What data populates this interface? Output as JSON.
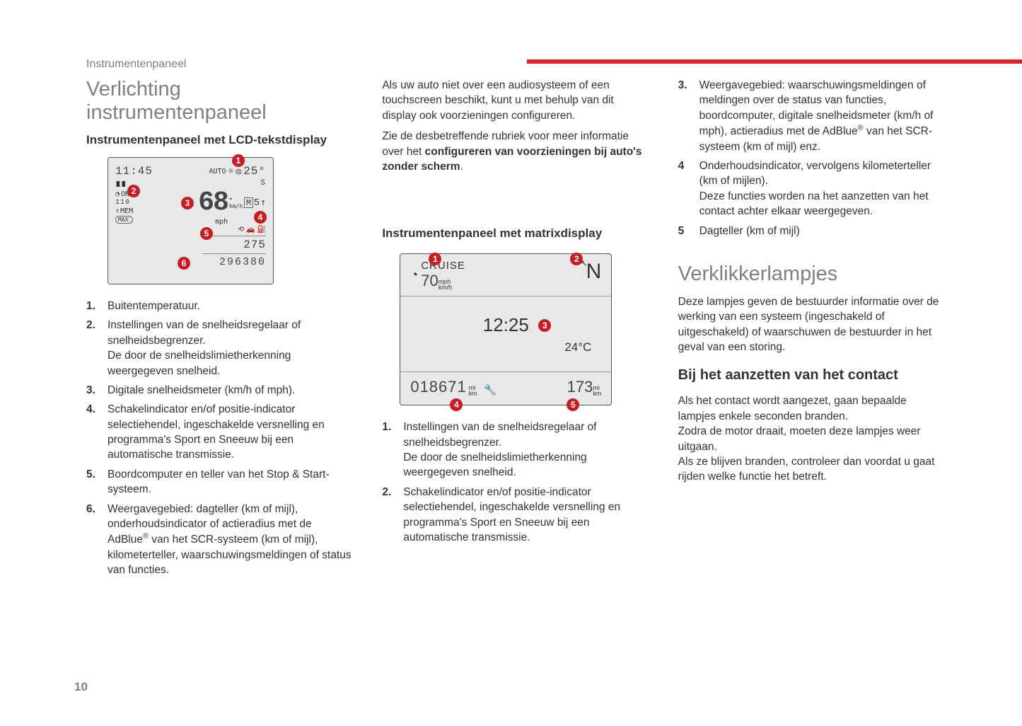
{
  "breadcrumb": "Instrumentenpaneel",
  "page_number": "10",
  "top_bar_color": "#d9262b",
  "col1": {
    "h1": "Verlichting instrumentenpaneel",
    "h2": "Instrumentenpaneel met LCD-tekstdisplay",
    "fig": {
      "time": "11:45",
      "temp": "25°",
      "speed_big": "68",
      "speed_unit1": "km/h",
      "speed_unit2": "mph",
      "cruise_on": "ON",
      "cruise_val": "110",
      "mem": "MEM",
      "max": "MAX",
      "trip": "275",
      "odo": "296380",
      "gear_s": "S",
      "gear_5": "5"
    },
    "list": [
      "Buitentemperatuur.",
      "Instellingen van de snelheidsregelaar of snelheidsbegrenzer.\nDe door de snelheidslimietherkenning weergegeven snelheid.",
      "Digitale snelheidsmeter (km/h of mph).",
      "Schakelindicator en/of positie-indicator selectiehendel, ingeschakelde versnelling en programma's Sport en Sneeuw bij een automatische transmissie.",
      "Boordcomputer en teller van het Stop & Start-systeem.",
      "Weergavegebied: dagteller (km of mijl), onderhoudsindicator of actieradius met de AdBlue® van het SCR-systeem (km of mijl), kilometerteller, waarschuwingsmeldingen of status van functies."
    ]
  },
  "col2": {
    "intro1": "Als uw auto niet over een audiosysteem of een touchscreen beschikt, kunt u met behulp van dit display ook voorzieningen configureren.",
    "intro2a": "Zie de desbetreffende rubriek voor meer informatie over het ",
    "intro2b": "configureren van voorzieningen bij auto's zonder scherm",
    "intro2c": ".",
    "h2": "Instrumentenpaneel met matrixdisplay",
    "fig": {
      "cruise": "CRUISE",
      "cruise_val": "70",
      "cruise_unit_top": "mph",
      "cruise_unit_bot": "km/h",
      "north": "N",
      "clock": "12:25",
      "temp": "24°C",
      "odo": "018671",
      "odo_unit_top": "mi",
      "odo_unit_bot": "km",
      "trip": "173",
      "trip_unit_top": "mi",
      "trip_unit_bot": "km"
    },
    "list": [
      "Instellingen van de snelheidsregelaar of snelheidsbegrenzer.\nDe door de snelheidslimietherkenning weergegeven snelheid.",
      "Schakelindicator en/of positie-indicator selectiehendel, ingeschakelde versnelling en programma's Sport en Sneeuw bij een automatische transmissie."
    ]
  },
  "col3": {
    "list_start": 3,
    "list": [
      "Weergavegebied: waarschuwingsmeldingen of meldingen over de status van functies, boordcomputer, digitale snelheidsmeter (km/h of mph), actieradius met de AdBlue® van het SCR-systeem (km of mijl) enz.",
      "Onderhoudsindicator, vervolgens kilometerteller (km of mijlen).\nDeze functies worden na het aanzetten van het contact achter elkaar weergegeven.",
      "Dagteller (km of mijl)"
    ],
    "h1": "Verklikkerlampjes",
    "p1": "Deze lampjes geven de bestuurder informatie over de werking van een systeem (ingeschakeld of uitgeschakeld) of waarschuwen de bestuurder in het geval van een storing.",
    "h2": "Bij het aanzetten van het contact",
    "p2": "Als het contact wordt aangezet, gaan bepaalde lampjes enkele seconden branden.",
    "p3": "Zodra de motor draait, moeten deze lampjes weer uitgaan.",
    "p4": "Als ze blijven branden, controleer dan voordat u gaat rijden welke functie het betreft."
  }
}
